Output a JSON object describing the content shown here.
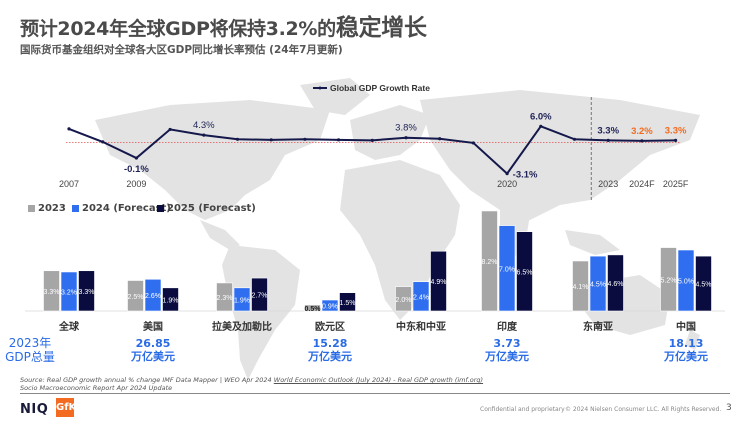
{
  "header": {
    "title_part1": "预计2024年全球GDP将保持3.2%的",
    "title_part2": "稳定增长",
    "subtitle": "国际货币基金组织对全球各大区GDP同比增长率预估 (24年7月更新)"
  },
  "colors": {
    "line": "#14184a",
    "reference_line": "#e05050",
    "forecast_label": "#f26b21",
    "bar_2023": "#a6a6a6",
    "bar_2024": "#2f6fef",
    "bar_2025": "#0a0c3f",
    "gdp_text": "#2a6be6",
    "map": "#e3e3e3"
  },
  "chart_data": [
    {
      "type": "line",
      "title": "",
      "legend": [
        "Global GDP Growth Rate"
      ],
      "legend_position": "top-center",
      "x": [
        "2007",
        "2008",
        "2009",
        "2010",
        "2011",
        "2012",
        "2013",
        "2014",
        "2015",
        "2016",
        "2017",
        "2018",
        "2019",
        "2020",
        "2021",
        "2022",
        "2023",
        "2024F",
        "2025F"
      ],
      "x_tick_labels": [
        "2007",
        "2009",
        "2020",
        "2023",
        "2024F",
        "2025F"
      ],
      "series": [
        {
          "name": "Global GDP Growth Rate",
          "values": [
            5.5,
            3.0,
            -0.1,
            5.4,
            4.3,
            3.5,
            3.4,
            3.5,
            3.4,
            3.3,
            3.8,
            3.6,
            2.8,
            -3.1,
            6.0,
            3.5,
            3.3,
            3.2,
            3.3
          ]
        }
      ],
      "data_labels": [
        {
          "x": "2009",
          "text": "-0.1%"
        },
        {
          "x": "2011",
          "text": "4.3%"
        },
        {
          "x": "2017",
          "text": "3.8%"
        },
        {
          "x": "2020",
          "text": "-3.1%"
        },
        {
          "x": "2021",
          "text": "6.0%"
        },
        {
          "x": "2023",
          "text": "3.3%"
        },
        {
          "x": "2024F",
          "text": "3.2%",
          "highlight": true
        },
        {
          "x": "2025F",
          "text": "3.3%",
          "highlight": true
        }
      ],
      "reference_line": 3.2,
      "forecast_divider_after": "2022",
      "ylim": [
        -4,
        7
      ],
      "grid": false
    },
    {
      "type": "bar",
      "title": "",
      "legend_position": "top-left",
      "categories": [
        "全球",
        "美国",
        "拉美及加勒比",
        "欧元区",
        "中东和中亚",
        "印度",
        "东南亚",
        "中国"
      ],
      "series": [
        {
          "name": "2023",
          "values": [
            3.3,
            2.5,
            2.3,
            0.5,
            2.0,
            8.2,
            4.1,
            5.2
          ]
        },
        {
          "name": "2024 (Forecast)",
          "values": [
            3.2,
            2.6,
            1.9,
            0.9,
            2.4,
            7.0,
            4.5,
            5.0
          ]
        },
        {
          "name": "2025 (Forecast)",
          "values": [
            3.3,
            1.9,
            2.7,
            1.5,
            4.9,
            6.5,
            4.6,
            4.5
          ]
        }
      ],
      "ylim": [
        0,
        8.5
      ],
      "grid": false
    }
  ],
  "gdp_total": {
    "label_line1": "2023年",
    "label_line2": "GDP总量",
    "items": [
      {
        "region": "美国",
        "value": "26.85",
        "unit": "万亿美元"
      },
      {
        "region": "欧元区",
        "value": "15.28",
        "unit": "万亿美元"
      },
      {
        "region": "印度",
        "value": "3.73",
        "unit": "万亿美元"
      },
      {
        "region": "中国",
        "value": "18.13",
        "unit": "万亿美元"
      }
    ]
  },
  "footer": {
    "source_line1_prefix": "Source: Real GDP growth annual % change IMF Data Mapper | WEO Apr 2024 ",
    "source_link": "World Economic Outlook (July 2024) - Real GDP growth (imf.org)",
    "source_line2": "Socio Macroeconomic Report Apr 2024 Update",
    "logo_niq": "NIQ",
    "logo_gfk": "GfK",
    "confidential": "Confidential and proprietary",
    "copyright": "© 2024 Nielsen Consumer LLC. All Rights Reserved.",
    "page_number": "3"
  }
}
